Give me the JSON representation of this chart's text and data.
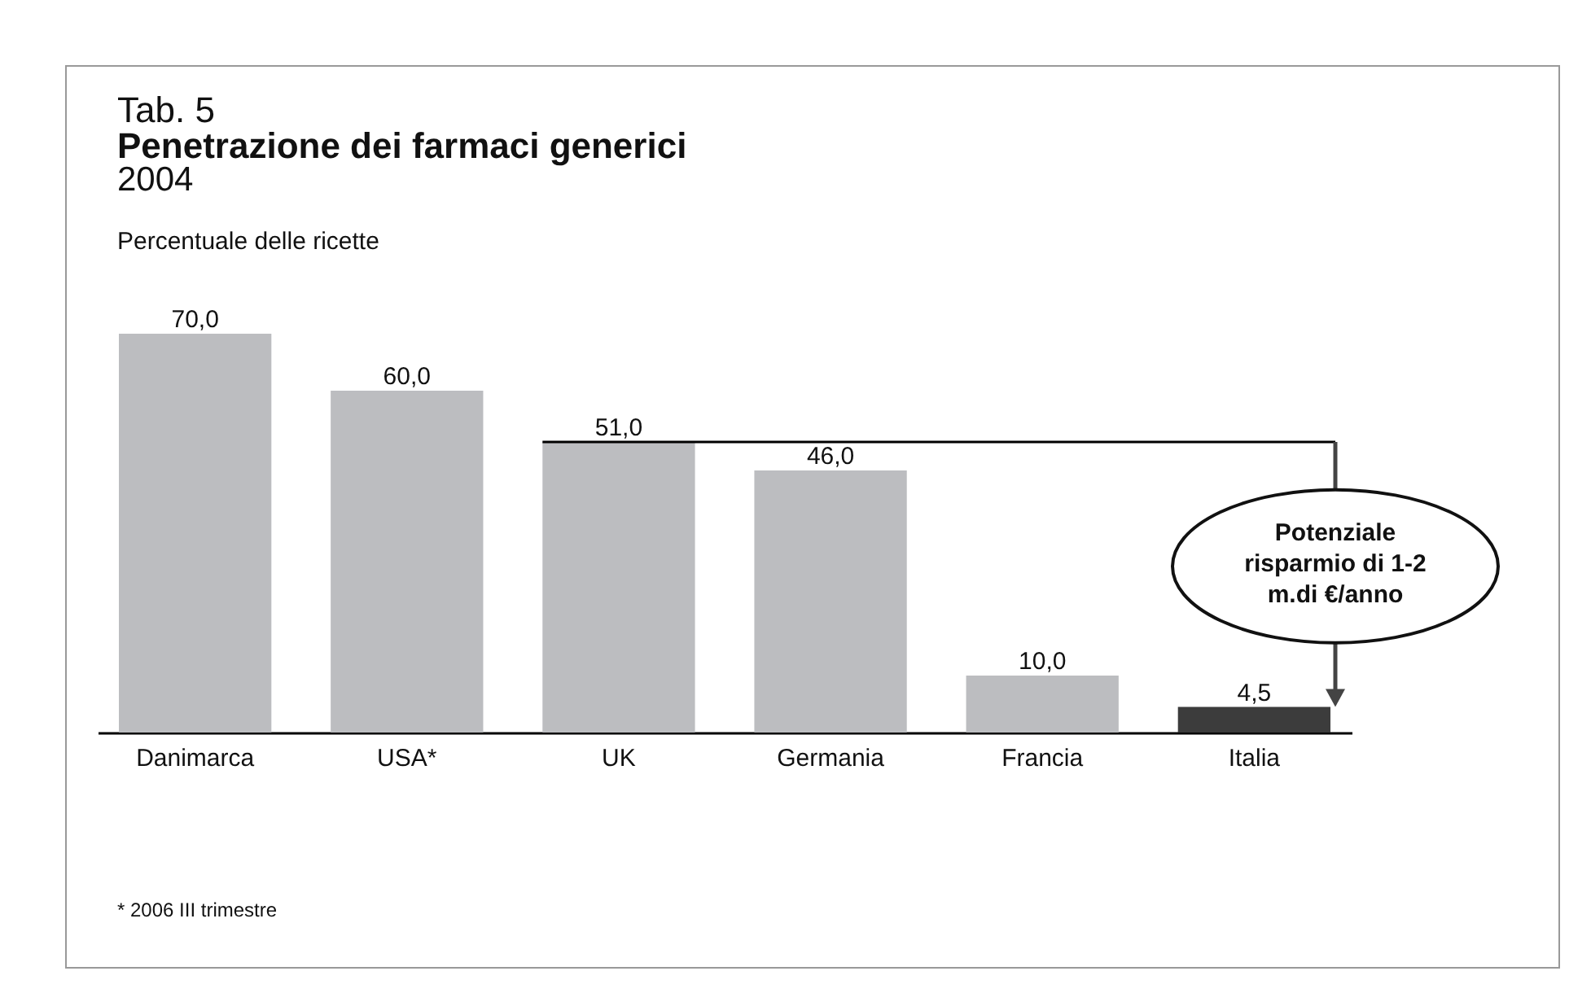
{
  "chart_data": {
    "type": "bar",
    "title": "Penetrazione dei farmaci generici",
    "subtitle": "2004",
    "ylabel": "Percentuale delle ricette",
    "categories": [
      "Danimarca",
      "USA*",
      "UK",
      "Germania",
      "Francia",
      "Italia"
    ],
    "values": [
      70.0,
      60.0,
      51.0,
      46.0,
      10.0,
      4.5
    ],
    "value_labels": [
      "70,0",
      "60,0",
      "51,0",
      "46,0",
      "10,0",
      "4,5"
    ],
    "colors": [
      "#bcbdc0",
      "#bcbdc0",
      "#bcbdc0",
      "#bcbdc0",
      "#bcbdc0",
      "#3c3c3c"
    ],
    "ref_lines": [
      {
        "axis": "y",
        "value": 51,
        "color": "#000000"
      }
    ],
    "annotations": [
      "Tab. 5",
      "Potenziale risparmio di 1-2 m.di €/anno",
      "* 2006 III trimestre"
    ],
    "grid": false,
    "legend": false
  }
}
